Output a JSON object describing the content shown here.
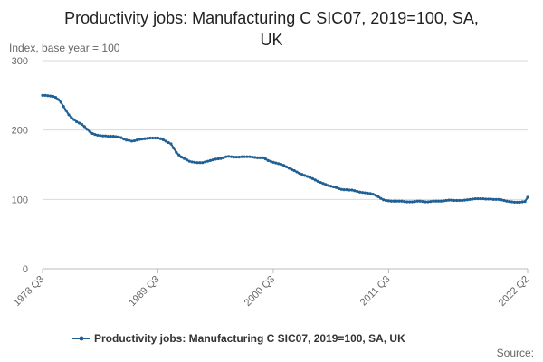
{
  "chart_data": {
    "type": "line",
    "title_line1": "Productivity jobs: Manufacturing C SIC07, 2019=100, SA,",
    "title_line2": "UK",
    "ylabel": "Index, base year = 100",
    "xlabel": "",
    "ylim": [
      0,
      300
    ],
    "y_ticks": [
      "0",
      "100",
      "200",
      "300"
    ],
    "x_tick_labels": [
      "1978 Q3",
      "1989 Q3",
      "2000 Q3",
      "2011 Q3",
      "2022 Q2"
    ],
    "grid": true,
    "legend_position": "bottom",
    "source_label": "Source:",
    "series": [
      {
        "name": "Productivity jobs: Manufacturing C SIC07, 2019=100, SA, UK",
        "color": "#206095",
        "start": "1978 Q3",
        "end": "2022 Q2",
        "values": [
          250,
          250,
          249.5,
          249,
          248.5,
          247,
          244,
          240,
          234,
          228,
          222,
          218,
          215,
          212,
          210,
          208,
          205,
          201,
          198,
          195,
          193.5,
          192.5,
          192,
          191.5,
          191.5,
          191,
          191,
          191,
          190.5,
          190,
          189,
          187,
          185.5,
          185,
          184,
          184.5,
          185.5,
          186.5,
          187,
          187.5,
          188,
          188.5,
          188.5,
          188.5,
          188.5,
          187.5,
          186,
          184,
          182,
          180,
          174,
          168,
          164,
          161,
          159,
          157,
          155,
          154,
          153.5,
          153,
          153,
          153,
          154,
          155,
          156,
          157,
          158,
          158.5,
          159,
          160,
          161.5,
          162,
          161.5,
          161,
          161,
          161,
          161.5,
          161.5,
          161.5,
          161.5,
          161,
          160.5,
          160,
          160,
          160,
          158.5,
          156,
          155,
          153.5,
          152.5,
          151.5,
          150.5,
          149,
          147,
          145,
          143,
          141.5,
          139.5,
          137.5,
          136,
          134.5,
          133,
          131.5,
          130,
          128,
          126,
          124.5,
          123,
          121.5,
          120,
          119,
          118,
          117,
          115.5,
          114.5,
          114,
          114,
          113.5,
          113.5,
          112.5,
          111.5,
          110.5,
          110,
          109.5,
          109,
          108.5,
          107.5,
          106,
          104,
          101.5,
          99.5,
          98.5,
          98,
          97.5,
          97.5,
          97.5,
          97.5,
          97.5,
          97,
          96.5,
          96.5,
          96.5,
          97,
          97.5,
          97.5,
          97,
          96.5,
          96.5,
          97,
          97.5,
          97.5,
          97.5,
          97.5,
          98,
          98.5,
          99,
          99,
          98.5,
          98.5,
          98.5,
          98.5,
          99,
          99.5,
          100,
          100.5,
          101,
          101,
          101,
          101,
          100.5,
          100.5,
          100.5,
          100,
          100,
          100,
          99.5,
          98.5,
          97.5,
          97,
          96.5,
          96,
          96,
          96,
          96.5,
          97,
          103
        ]
      }
    ]
  }
}
